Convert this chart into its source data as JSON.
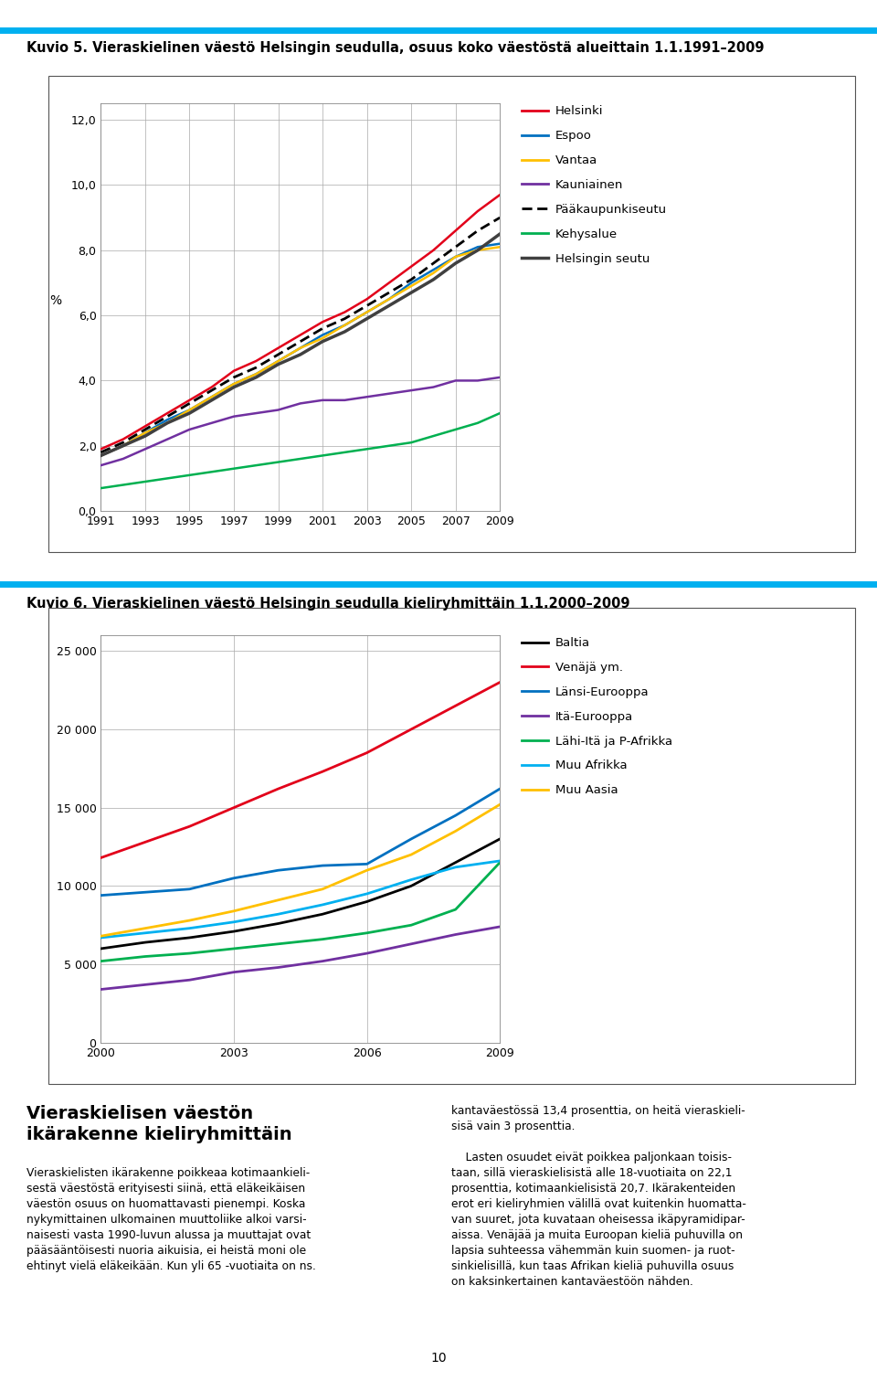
{
  "fig_width": 9.6,
  "fig_height": 15.11,
  "background_color": "#ffffff",
  "chart1_title": "Kuvio 5. Vieraskielinen väestö Helsingin seudulla, osuus koko väestöstä alueittain 1.1.1991–2009",
  "chart2_title": "Kuvio 6. Vieraskielinen väestö Helsingin seudulla kieliryhmittäin 1.1.2000–2009",
  "c1_ylabel": "%",
  "c1_ylim": [
    0.0,
    12.5
  ],
  "c1_yticks": [
    0.0,
    2.0,
    4.0,
    6.0,
    8.0,
    10.0,
    12.0
  ],
  "c1_ytick_labels": [
    "0,0",
    "2,0",
    "4,0",
    "6,0",
    "8,0",
    "10,0",
    "12,0"
  ],
  "c1_xticks": [
    1991,
    1993,
    1995,
    1997,
    1999,
    2001,
    2003,
    2005,
    2007,
    2009
  ],
  "c1_xlim": [
    1991,
    2009
  ],
  "c1_years": [
    1991,
    1992,
    1993,
    1994,
    1995,
    1996,
    1997,
    1998,
    1999,
    2000,
    2001,
    2002,
    2003,
    2004,
    2005,
    2006,
    2007,
    2008,
    2009
  ],
  "c1_Helsinki": [
    1.9,
    2.2,
    2.6,
    3.0,
    3.4,
    3.8,
    4.3,
    4.6,
    5.0,
    5.4,
    5.8,
    6.1,
    6.5,
    7.0,
    7.5,
    8.0,
    8.6,
    9.2,
    9.7
  ],
  "c1_Espoo": [
    1.7,
    2.0,
    2.4,
    2.8,
    3.1,
    3.5,
    3.9,
    4.2,
    4.6,
    5.0,
    5.4,
    5.7,
    6.1,
    6.5,
    7.0,
    7.4,
    7.8,
    8.1,
    8.2
  ],
  "c1_Vantaa": [
    1.7,
    2.0,
    2.4,
    2.7,
    3.1,
    3.5,
    3.9,
    4.2,
    4.6,
    5.0,
    5.3,
    5.7,
    6.1,
    6.5,
    6.9,
    7.3,
    7.8,
    8.0,
    8.1
  ],
  "c1_Kauniainen": [
    1.4,
    1.6,
    1.9,
    2.2,
    2.5,
    2.7,
    2.9,
    3.0,
    3.1,
    3.3,
    3.4,
    3.4,
    3.5,
    3.6,
    3.7,
    3.8,
    4.0,
    4.0,
    4.1
  ],
  "c1_Paakaupunkiseutu": [
    1.8,
    2.1,
    2.5,
    2.9,
    3.3,
    3.7,
    4.1,
    4.4,
    4.8,
    5.2,
    5.6,
    5.9,
    6.3,
    6.7,
    7.1,
    7.6,
    8.1,
    8.6,
    9.0
  ],
  "c1_Kehysalue": [
    0.7,
    0.8,
    0.9,
    1.0,
    1.1,
    1.2,
    1.3,
    1.4,
    1.5,
    1.6,
    1.7,
    1.8,
    1.9,
    2.0,
    2.1,
    2.3,
    2.5,
    2.7,
    3.0
  ],
  "c1_Helsingin_seutu": [
    1.7,
    2.0,
    2.3,
    2.7,
    3.0,
    3.4,
    3.8,
    4.1,
    4.5,
    4.8,
    5.2,
    5.5,
    5.9,
    6.3,
    6.7,
    7.1,
    7.6,
    8.0,
    8.5
  ],
  "c1_color_Helsinki": "#e2001a",
  "c1_color_Espoo": "#0070c0",
  "c1_color_Vantaa": "#ffc000",
  "c1_color_Kauniainen": "#7030a0",
  "c1_color_Paakaupunkiseutu": "#000000",
  "c1_color_Kehysalue": "#00b050",
  "c1_color_Helsingin_seutu": "#404040",
  "c1_legend": [
    "Helsinki",
    "Espoo",
    "Vantaa",
    "Kauniainen",
    "Pääkaupunkiseutu",
    "Kehysalue",
    "Helsingin seutu"
  ],
  "c2_ylim": [
    0,
    26000
  ],
  "c2_yticks": [
    0,
    5000,
    10000,
    15000,
    20000,
    25000
  ],
  "c2_ytick_labels": [
    "0",
    "5 000",
    "10 000",
    "15 000",
    "20 000",
    "25 000"
  ],
  "c2_xticks": [
    2000,
    2003,
    2006,
    2009
  ],
  "c2_xlim": [
    2000,
    2009
  ],
  "c2_years": [
    2000,
    2001,
    2002,
    2003,
    2004,
    2005,
    2006,
    2007,
    2008,
    2009
  ],
  "c2_Baltia": [
    6000,
    6400,
    6700,
    7100,
    7600,
    8200,
    9000,
    10000,
    11500,
    13000
  ],
  "c2_Venaja": [
    11800,
    12800,
    13800,
    15000,
    16200,
    17300,
    18500,
    20000,
    21500,
    23000
  ],
  "c2_Lansi_Eurooppa": [
    9400,
    9600,
    9800,
    10500,
    11000,
    11300,
    11400,
    13000,
    14500,
    16200
  ],
  "c2_Ita_Eurooppa": [
    3400,
    3700,
    4000,
    4500,
    4800,
    5200,
    5700,
    6300,
    6900,
    7400
  ],
  "c2_Lahi_Ita": [
    5200,
    5500,
    5700,
    6000,
    6300,
    6600,
    7000,
    7500,
    8500,
    11500
  ],
  "c2_Muu_Afrikka": [
    6700,
    7000,
    7300,
    7700,
    8200,
    8800,
    9500,
    10400,
    11200,
    11600
  ],
  "c2_Muu_Aasia": [
    6800,
    7300,
    7800,
    8400,
    9100,
    9800,
    11000,
    12000,
    13500,
    15200
  ],
  "c2_color_Baltia": "#000000",
  "c2_color_Venaja": "#e2001a",
  "c2_color_Lansi_Eurooppa": "#0070c0",
  "c2_color_Ita_Eurooppa": "#7030a0",
  "c2_color_Lahi_Ita": "#00b050",
  "c2_color_Muu_Afrikka": "#00b0f0",
  "c2_color_Muu_Aasia": "#ffc000",
  "c2_legend": [
    "Baltia",
    "Venäjä ym.",
    "Länsi-Eurooppa",
    "Itä-Eurooppa",
    "Lähi-Itä ja P-Afrikka",
    "Muu Afrikka",
    "Muu Aasia"
  ],
  "header_color": "#00b0f0",
  "grid_color": "#aaaaaa",
  "chart_bg": "#ffffff",
  "box_color": "#888888",
  "bottom_heading": "Vieraskielisen väestön\nikärakenne kieliryhmittäin",
  "bottom_left_body": "Vieraskielisten ikärakenne poikkeaa kotimaankieli-\nsestä väestöstä erityisesti siinä, että eläkeikäisen\nväestön osuus on huomattavasti pienempi. Koska\nnykymittainen ulkomainen muuttoliike alkoi varsi-\nnaisesti vasta 1990-luvun alussa ja muuttajat ovat\npääsääntöisesti nuoria aikuisia, ei heistä moni ole\nehtinyt vielä eläkeikään. Kun yli 65 -vuotiaita on ns.",
  "bottom_right_body": "kantaväestössä 13,4 prosenttia, on heitä vieraskieli-\nsisä vain 3 prosenttia.\n\n    Lasten osuudet eivät poikkea paljonkaan toisis-\ntaan, sillä vieraskielisistä alle 18-vuotiaita on 22,1\nprosenttia, kotimaankielisistä 20,7. Ikärakenteiden\nerot eri kieliryhmien välillä ovat kuitenkin huomatta-\nvan suuret, jota kuvataan oheisessa ikäpyramidipar-\naissa. Venäjää ja muita Euroopan kieliä puhuvilla on\nlapsia suhteessa vähemmän kuin suomen- ja ruot-\nsinkielisillä, kun taas Afrikan kieliä puhuvilla osuus\non kaksinkertainen kantaväestöön nähden.",
  "page_number": "10"
}
